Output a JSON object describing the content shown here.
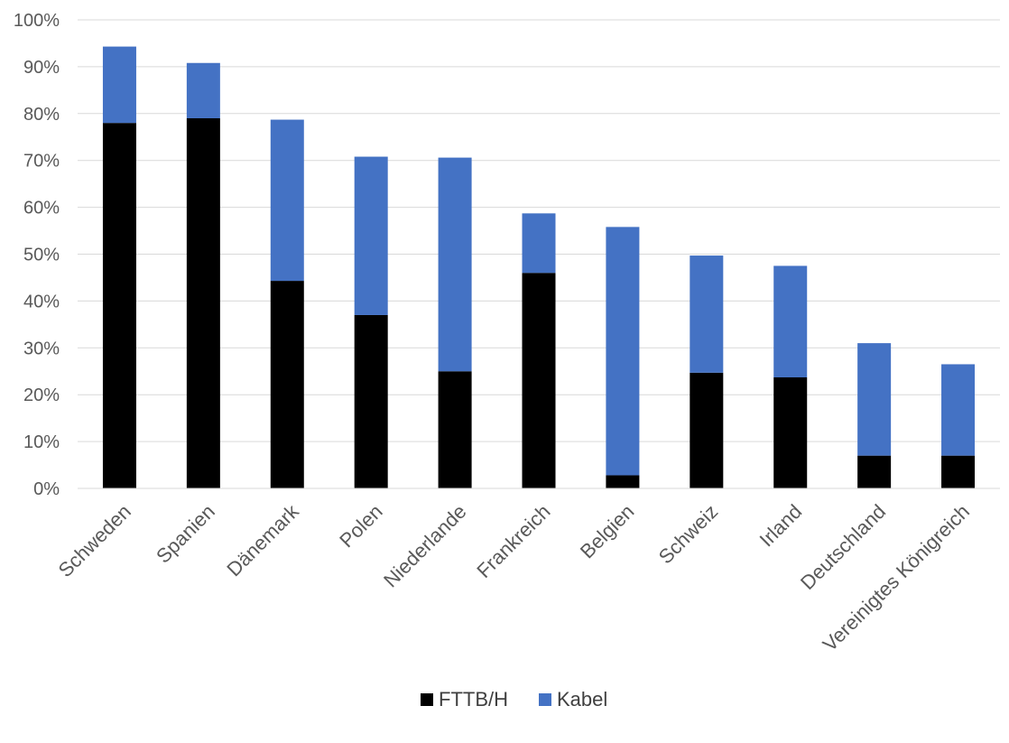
{
  "chart_data": {
    "type": "bar",
    "stacked": true,
    "categories": [
      "Schweden",
      "Spanien",
      "Dänemark",
      "Polen",
      "Niederlande",
      "Frankreich",
      "Belgien",
      "Schweiz",
      "Irland",
      "Deutschland",
      "Vereinigtes Königreich"
    ],
    "series": [
      {
        "name": "FTTB/H",
        "color": "#000000",
        "values": [
          78,
          79,
          44.3,
          37,
          25,
          46,
          2.8,
          24.7,
          23.7,
          7,
          7
        ]
      },
      {
        "name": "Kabel",
        "color": "#4472c4",
        "values": [
          16.3,
          11.8,
          34.4,
          33.8,
          45.6,
          12.7,
          53,
          25,
          23.8,
          24,
          19.5
        ]
      }
    ],
    "ylim": [
      0,
      100
    ],
    "yticks": [
      "0%",
      "10%",
      "20%",
      "30%",
      "40%",
      "50%",
      "60%",
      "70%",
      "80%",
      "90%",
      "100%"
    ],
    "grid": true,
    "legend_position": "bottom"
  }
}
